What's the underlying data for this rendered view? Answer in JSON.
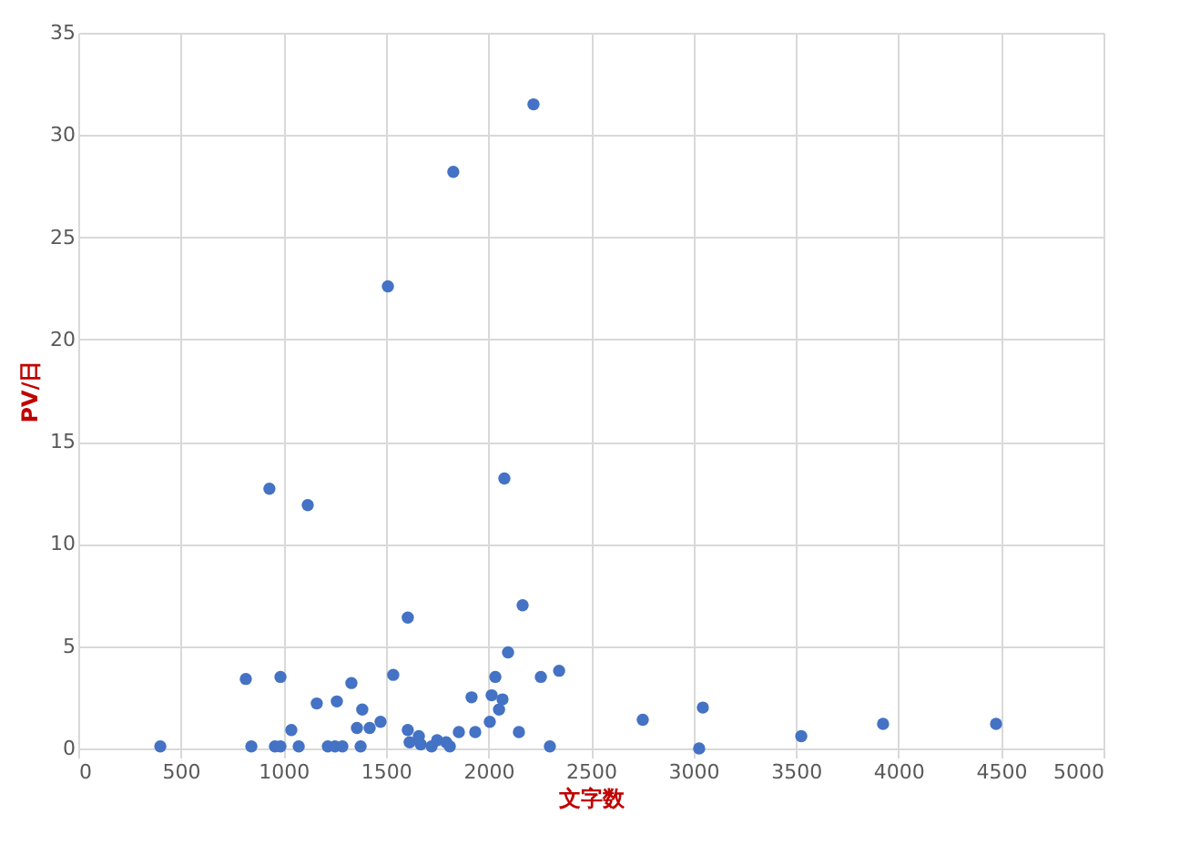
{
  "chart_data": {
    "type": "scatter",
    "xlabel": "文字数",
    "ylabel": "PV/日",
    "x": [
      400,
      817,
      844,
      932,
      959,
      986,
      986,
      1039,
      1075,
      1119,
      1163,
      1217,
      1261,
      1252,
      1288,
      1332,
      1359,
      1377,
      1385,
      1421,
      1474,
      1510,
      1536,
      1607,
      1607,
      1616,
      1661,
      1670,
      1723,
      1750,
      1794,
      1812,
      1829,
      1856,
      1918,
      1936,
      2007,
      2016,
      2034,
      2052,
      2069,
      2078,
      2096,
      2149,
      2167,
      2220,
      2256,
      2300,
      2345,
      2753,
      3046,
      3028,
      3526,
      3925,
      4476
    ],
    "series": [
      {
        "color": "#4472c4",
        "values": [
          0.1,
          3.4,
          0.1,
          12.7,
          0.1,
          3.5,
          0.1,
          0.9,
          0.1,
          11.9,
          2.2,
          0.1,
          2.3,
          0.1,
          0.1,
          3.2,
          1.0,
          0.1,
          1.9,
          1.0,
          1.3,
          22.6,
          3.6,
          6.4,
          0.9,
          0.3,
          0.6,
          0.2,
          0.1,
          0.4,
          0.3,
          0.1,
          28.2,
          0.8,
          2.5,
          0.8,
          1.3,
          2.6,
          3.5,
          1.9,
          2.4,
          13.2,
          4.7,
          0.8,
          7.0,
          31.5,
          3.5,
          0.1,
          3.8,
          1.4,
          2.0,
          0.0,
          0.6,
          1.2,
          1.2
        ]
      }
    ],
    "xlim": [
      0,
      5000
    ],
    "xticks": [
      0,
      500,
      1000,
      1500,
      2000,
      2500,
      3000,
      3500,
      4000,
      4500,
      5000
    ],
    "ylim": [
      0,
      35
    ],
    "yticks": [
      0,
      5,
      10,
      15,
      20,
      25,
      30,
      35
    ],
    "grid": true,
    "marker": "circle"
  }
}
